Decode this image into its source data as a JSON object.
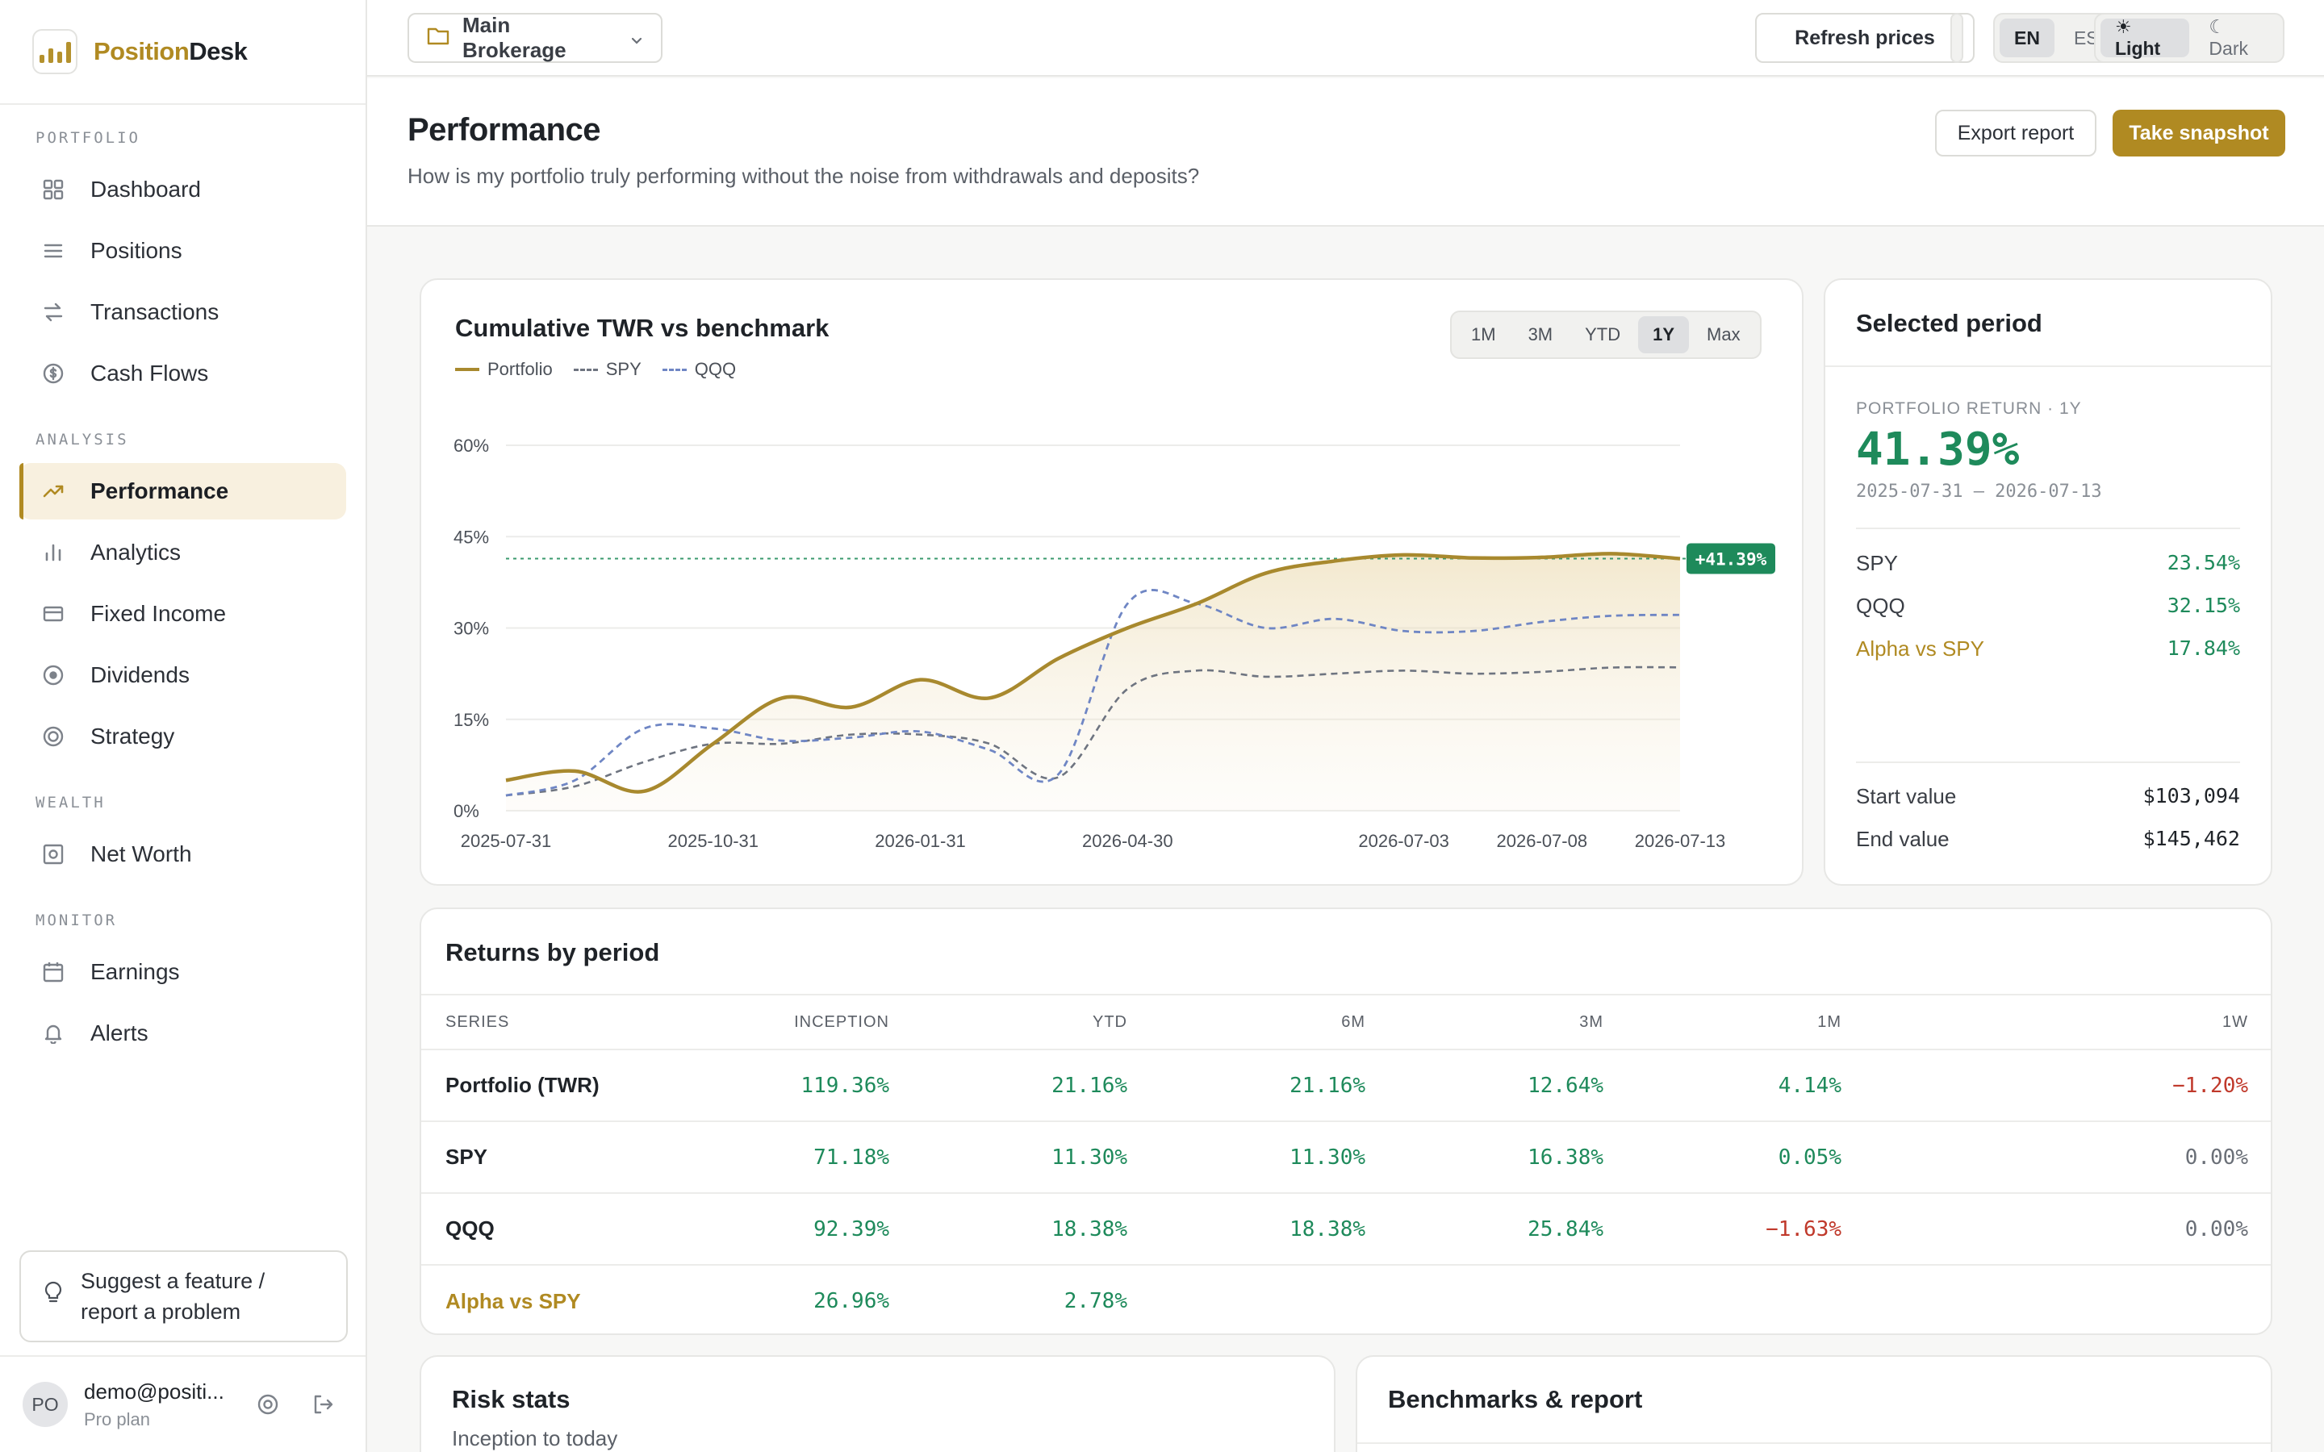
{
  "brand": {
    "name_part1": "Position",
    "name_part2": "Desk"
  },
  "sidebar": {
    "sections": [
      {
        "heading": "PORTFOLIO",
        "items": [
          {
            "label": "Dashboard",
            "icon": "grid-icon"
          },
          {
            "label": "Positions",
            "icon": "list-icon"
          },
          {
            "label": "Transactions",
            "icon": "arrows-swap-icon"
          },
          {
            "label": "Cash Flows",
            "icon": "dollar-circle-icon"
          }
        ]
      },
      {
        "heading": "ANALYSIS",
        "items": [
          {
            "label": "Performance",
            "icon": "trend-up-icon",
            "active": true
          },
          {
            "label": "Analytics",
            "icon": "bar-chart-icon"
          },
          {
            "label": "Fixed Income",
            "icon": "card-icon"
          },
          {
            "label": "Dividends",
            "icon": "target-icon"
          },
          {
            "label": "Strategy",
            "icon": "ring-icon"
          }
        ]
      },
      {
        "heading": "WEALTH",
        "items": [
          {
            "label": "Net Worth",
            "icon": "safe-icon"
          }
        ]
      },
      {
        "heading": "MONITOR",
        "items": [
          {
            "label": "Earnings",
            "icon": "calendar-icon"
          },
          {
            "label": "Alerts",
            "icon": "bell-icon"
          }
        ]
      }
    ],
    "suggest_label": "Suggest a feature / report a problem",
    "user": {
      "initials": "PO",
      "email": "demo@positi...",
      "plan": "Pro plan"
    }
  },
  "topbar": {
    "account": "Main Brokerage",
    "refresh_label": "Refresh prices",
    "lang": [
      "EN",
      "ES"
    ],
    "lang_selected": "EN",
    "theme": [
      "☀ Light",
      "☾ Dark"
    ],
    "theme_selected": "☀ Light"
  },
  "page": {
    "title": "Performance",
    "subtitle": "How is my portfolio truly performing without the noise from withdrawals and deposits?",
    "export_label": "Export report",
    "snapshot_label": "Take snapshot"
  },
  "chart_card": {
    "title": "Cumulative TWR vs benchmark",
    "ranges": [
      "1M",
      "3M",
      "YTD",
      "1Y",
      "Max"
    ],
    "range_selected": "1Y"
  },
  "chart_data": {
    "type": "line",
    "title": "Cumulative TWR vs benchmark",
    "x": [
      "2025-07-31",
      "2025-08-31",
      "2025-09-30",
      "2025-10-31",
      "2025-11-30",
      "2025-12-31",
      "2026-01-31",
      "2026-02-28",
      "2026-03-31",
      "2026-04-30",
      "2026-05-15",
      "2026-06-01",
      "2026-06-15",
      "2026-07-03",
      "2026-07-05",
      "2026-07-08",
      "2026-07-10",
      "2026-07-13"
    ],
    "x_ticks": [
      "2025-07-31",
      "2025-10-31",
      "2026-01-31",
      "2026-04-30",
      "2026-07-03",
      "2026-07-08",
      "2026-07-13"
    ],
    "series": [
      {
        "name": "Portfolio",
        "color": "#a8892e",
        "values": [
          5,
          6.5,
          3.2,
          11,
          18.5,
          17,
          21.5,
          18.5,
          25,
          30,
          34,
          39,
          41,
          42,
          41.5,
          41.6,
          42.2,
          41.39
        ]
      },
      {
        "name": "SPY",
        "color": "#6e7480",
        "values": [
          2.5,
          4,
          8,
          11,
          11,
          12.5,
          12.5,
          11,
          5.5,
          20,
          23,
          22,
          22.5,
          23,
          22.5,
          22.8,
          23.5,
          23.54
        ]
      },
      {
        "name": "QQQ",
        "color": "#6f86c4",
        "values": [
          2.5,
          5,
          13.5,
          13.5,
          11.5,
          12,
          13,
          10,
          6,
          34,
          34,
          30,
          31.5,
          29.5,
          29.5,
          31,
          32,
          32.15
        ]
      }
    ],
    "reference_line": 41.39,
    "end_label": "+41.39%",
    "y_ticks": [
      "0%",
      "15%",
      "30%",
      "45%",
      "60%"
    ],
    "ylim": [
      0,
      60
    ],
    "grid": true,
    "legend": "top-left"
  },
  "period": {
    "title": "Selected period",
    "label": "PORTFOLIO RETURN · 1Y",
    "value": "41.39%",
    "range": "2025-07-31 – 2026-07-13",
    "rows": [
      {
        "k": "SPY",
        "v": "23.54%"
      },
      {
        "k": "QQQ",
        "v": "32.15%"
      },
      {
        "k": "Alpha vs SPY",
        "v": "17.84%"
      }
    ],
    "start_label": "Start value",
    "start_value": "$103,094",
    "end_label": "End value",
    "end_value": "$145,462"
  },
  "returns": {
    "title": "Returns by period",
    "columns": [
      "SERIES",
      "INCEPTION",
      "YTD",
      "6M",
      "3M",
      "1M",
      "1W"
    ],
    "rows": [
      [
        "Portfolio (TWR)",
        "119.36%",
        "21.16%",
        "21.16%",
        "12.64%",
        "4.14%",
        "−1.20%"
      ],
      [
        "SPY",
        "71.18%",
        "11.30%",
        "11.30%",
        "16.38%",
        "0.05%",
        "0.00%"
      ],
      [
        "QQQ",
        "92.39%",
        "18.38%",
        "18.38%",
        "25.84%",
        "−1.63%",
        "0.00%"
      ],
      [
        "Alpha vs SPY",
        "26.96%",
        "2.78%",
        "",
        "",
        "",
        ""
      ]
    ]
  },
  "risk": {
    "title": "Risk stats",
    "subtitle": "Inception to today"
  },
  "bench": {
    "title": "Benchmarks & report"
  },
  "colors": {
    "accent": "#b08a22",
    "positive": "#1e8a5b",
    "negative": "#c0392b"
  }
}
